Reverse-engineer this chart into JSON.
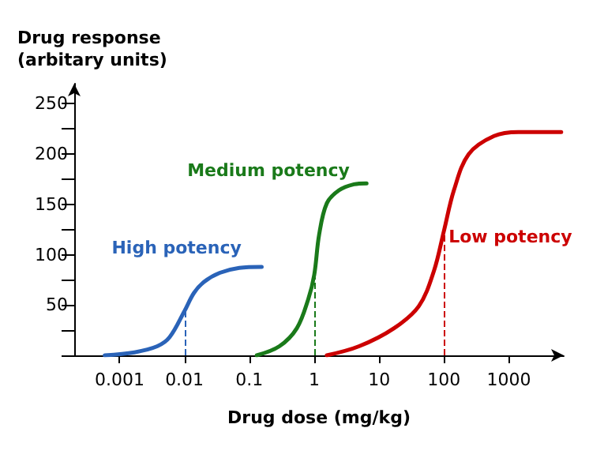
{
  "chart_data": {
    "type": "line",
    "xlabel": "Drug dose (mg/kg)",
    "ylabel": "Drug response\n(arbitary units)",
    "log": "x",
    "xlim": [
      0.0002,
      7000
    ],
    "xticks": [
      0.001,
      0.01,
      0.1,
      1,
      10,
      100,
      1000
    ],
    "ylim": [
      0,
      270
    ],
    "yticks": [
      {
        "value": 0,
        "label": null
      },
      {
        "value": 25,
        "label": null
      },
      50,
      {
        "value": 75,
        "label": null
      },
      100,
      {
        "value": 125,
        "label": null
      },
      150,
      {
        "value": 175,
        "label": null
      },
      200,
      {
        "value": 225,
        "label": null
      },
      250
    ],
    "grid": false,
    "marker": "none",
    "line_style": "solid",
    "series": [
      {
        "name": "High potency",
        "color": "#2a63b8",
        "x": [
          0.00059,
          0.0017,
          0.0038,
          0.0059,
          0.01,
          0.014,
          0.02,
          0.035,
          0.07,
          0.155
        ],
        "values": [
          0,
          3,
          9,
          18,
          44,
          62,
          73,
          82,
          87,
          88
        ]
      },
      {
        "name": "Medium potency",
        "color": "#1a7a1a",
        "x": [
          0.13,
          0.29,
          0.54,
          0.81,
          1,
          1.19,
          1.56,
          2.4,
          4.1,
          6.4
        ],
        "values": [
          0,
          9,
          27,
          56,
          80,
          120,
          151,
          164,
          170,
          171
        ]
      },
      {
        "name": "Low potency",
        "color": "#cc0000",
        "x": [
          1.56,
          4.9,
          17,
          41,
          70,
          100,
          142,
          240,
          590,
          1400,
          6400
        ],
        "values": [
          0,
          9,
          27,
          49,
          84,
          124,
          164,
          200,
          218,
          222,
          222
        ]
      }
    ],
    "ref_lines": [
      {
        "axis": "x",
        "value": 0.01,
        "color": "#2a63b8",
        "line_style": "dashed"
      },
      {
        "axis": "x",
        "value": 1,
        "color": "#1a7a1a",
        "line_style": "dashed"
      },
      {
        "axis": "x",
        "value": 100,
        "color": "#cc0000",
        "line_style": "dashed"
      }
    ]
  }
}
